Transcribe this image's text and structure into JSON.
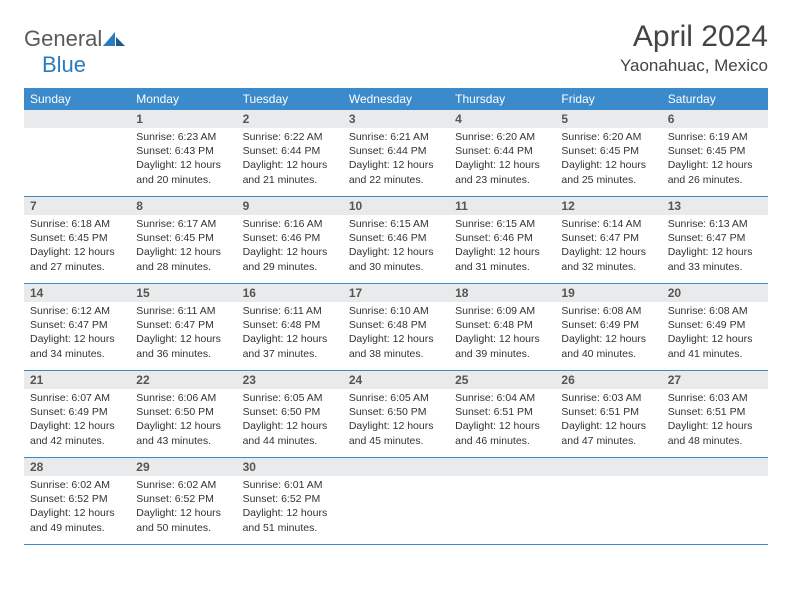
{
  "logo": {
    "general": "General",
    "blue": "Blue"
  },
  "title": "April 2024",
  "location": "Yaonahuac, Mexico",
  "colors": {
    "header_bg": "#3b8acb",
    "header_text": "#ffffff",
    "daynum_bg": "#e9eaeb",
    "text": "#333333",
    "rule": "#3b8acb",
    "logo_gray": "#5a5a5a",
    "logo_blue": "#2b7bbf"
  },
  "weekdays": [
    "Sunday",
    "Monday",
    "Tuesday",
    "Wednesday",
    "Thursday",
    "Friday",
    "Saturday"
  ],
  "weeks": [
    [
      {
        "n": "",
        "sr": "",
        "ss": "",
        "dl": ""
      },
      {
        "n": "1",
        "sr": "Sunrise: 6:23 AM",
        "ss": "Sunset: 6:43 PM",
        "dl": "Daylight: 12 hours and 20 minutes."
      },
      {
        "n": "2",
        "sr": "Sunrise: 6:22 AM",
        "ss": "Sunset: 6:44 PM",
        "dl": "Daylight: 12 hours and 21 minutes."
      },
      {
        "n": "3",
        "sr": "Sunrise: 6:21 AM",
        "ss": "Sunset: 6:44 PM",
        "dl": "Daylight: 12 hours and 22 minutes."
      },
      {
        "n": "4",
        "sr": "Sunrise: 6:20 AM",
        "ss": "Sunset: 6:44 PM",
        "dl": "Daylight: 12 hours and 23 minutes."
      },
      {
        "n": "5",
        "sr": "Sunrise: 6:20 AM",
        "ss": "Sunset: 6:45 PM",
        "dl": "Daylight: 12 hours and 25 minutes."
      },
      {
        "n": "6",
        "sr": "Sunrise: 6:19 AM",
        "ss": "Sunset: 6:45 PM",
        "dl": "Daylight: 12 hours and 26 minutes."
      }
    ],
    [
      {
        "n": "7",
        "sr": "Sunrise: 6:18 AM",
        "ss": "Sunset: 6:45 PM",
        "dl": "Daylight: 12 hours and 27 minutes."
      },
      {
        "n": "8",
        "sr": "Sunrise: 6:17 AM",
        "ss": "Sunset: 6:45 PM",
        "dl": "Daylight: 12 hours and 28 minutes."
      },
      {
        "n": "9",
        "sr": "Sunrise: 6:16 AM",
        "ss": "Sunset: 6:46 PM",
        "dl": "Daylight: 12 hours and 29 minutes."
      },
      {
        "n": "10",
        "sr": "Sunrise: 6:15 AM",
        "ss": "Sunset: 6:46 PM",
        "dl": "Daylight: 12 hours and 30 minutes."
      },
      {
        "n": "11",
        "sr": "Sunrise: 6:15 AM",
        "ss": "Sunset: 6:46 PM",
        "dl": "Daylight: 12 hours and 31 minutes."
      },
      {
        "n": "12",
        "sr": "Sunrise: 6:14 AM",
        "ss": "Sunset: 6:47 PM",
        "dl": "Daylight: 12 hours and 32 minutes."
      },
      {
        "n": "13",
        "sr": "Sunrise: 6:13 AM",
        "ss": "Sunset: 6:47 PM",
        "dl": "Daylight: 12 hours and 33 minutes."
      }
    ],
    [
      {
        "n": "14",
        "sr": "Sunrise: 6:12 AM",
        "ss": "Sunset: 6:47 PM",
        "dl": "Daylight: 12 hours and 34 minutes."
      },
      {
        "n": "15",
        "sr": "Sunrise: 6:11 AM",
        "ss": "Sunset: 6:47 PM",
        "dl": "Daylight: 12 hours and 36 minutes."
      },
      {
        "n": "16",
        "sr": "Sunrise: 6:11 AM",
        "ss": "Sunset: 6:48 PM",
        "dl": "Daylight: 12 hours and 37 minutes."
      },
      {
        "n": "17",
        "sr": "Sunrise: 6:10 AM",
        "ss": "Sunset: 6:48 PM",
        "dl": "Daylight: 12 hours and 38 minutes."
      },
      {
        "n": "18",
        "sr": "Sunrise: 6:09 AM",
        "ss": "Sunset: 6:48 PM",
        "dl": "Daylight: 12 hours and 39 minutes."
      },
      {
        "n": "19",
        "sr": "Sunrise: 6:08 AM",
        "ss": "Sunset: 6:49 PM",
        "dl": "Daylight: 12 hours and 40 minutes."
      },
      {
        "n": "20",
        "sr": "Sunrise: 6:08 AM",
        "ss": "Sunset: 6:49 PM",
        "dl": "Daylight: 12 hours and 41 minutes."
      }
    ],
    [
      {
        "n": "21",
        "sr": "Sunrise: 6:07 AM",
        "ss": "Sunset: 6:49 PM",
        "dl": "Daylight: 12 hours and 42 minutes."
      },
      {
        "n": "22",
        "sr": "Sunrise: 6:06 AM",
        "ss": "Sunset: 6:50 PM",
        "dl": "Daylight: 12 hours and 43 minutes."
      },
      {
        "n": "23",
        "sr": "Sunrise: 6:05 AM",
        "ss": "Sunset: 6:50 PM",
        "dl": "Daylight: 12 hours and 44 minutes."
      },
      {
        "n": "24",
        "sr": "Sunrise: 6:05 AM",
        "ss": "Sunset: 6:50 PM",
        "dl": "Daylight: 12 hours and 45 minutes."
      },
      {
        "n": "25",
        "sr": "Sunrise: 6:04 AM",
        "ss": "Sunset: 6:51 PM",
        "dl": "Daylight: 12 hours and 46 minutes."
      },
      {
        "n": "26",
        "sr": "Sunrise: 6:03 AM",
        "ss": "Sunset: 6:51 PM",
        "dl": "Daylight: 12 hours and 47 minutes."
      },
      {
        "n": "27",
        "sr": "Sunrise: 6:03 AM",
        "ss": "Sunset: 6:51 PM",
        "dl": "Daylight: 12 hours and 48 minutes."
      }
    ],
    [
      {
        "n": "28",
        "sr": "Sunrise: 6:02 AM",
        "ss": "Sunset: 6:52 PM",
        "dl": "Daylight: 12 hours and 49 minutes."
      },
      {
        "n": "29",
        "sr": "Sunrise: 6:02 AM",
        "ss": "Sunset: 6:52 PM",
        "dl": "Daylight: 12 hours and 50 minutes."
      },
      {
        "n": "30",
        "sr": "Sunrise: 6:01 AM",
        "ss": "Sunset: 6:52 PM",
        "dl": "Daylight: 12 hours and 51 minutes."
      },
      {
        "n": "",
        "sr": "",
        "ss": "",
        "dl": ""
      },
      {
        "n": "",
        "sr": "",
        "ss": "",
        "dl": ""
      },
      {
        "n": "",
        "sr": "",
        "ss": "",
        "dl": ""
      },
      {
        "n": "",
        "sr": "",
        "ss": "",
        "dl": ""
      }
    ]
  ]
}
